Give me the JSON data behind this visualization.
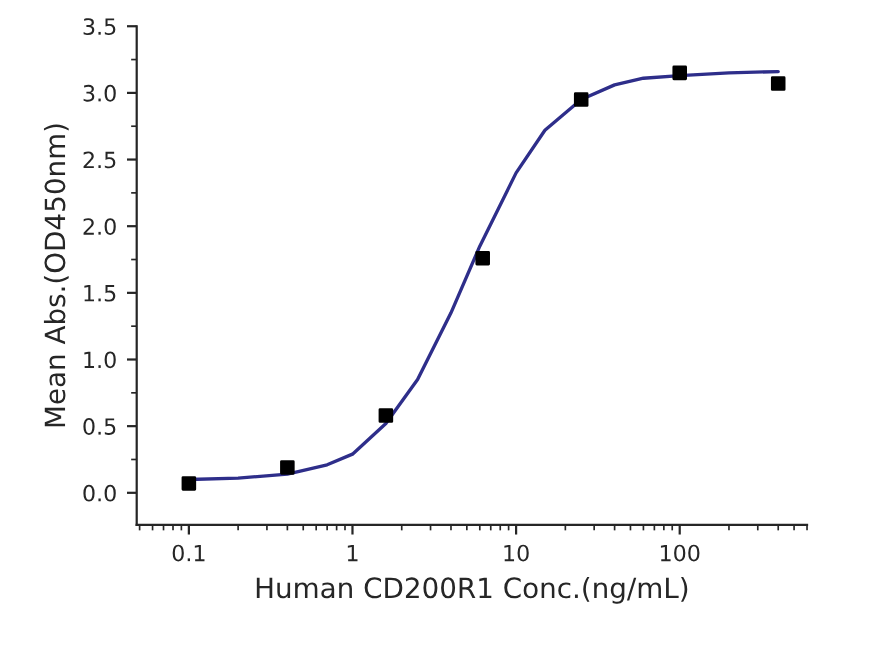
{
  "chart_data": {
    "type": "scatter",
    "xlabel": "Human CD200R1 Conc.(ng/mL)",
    "ylabel": "Mean Abs.(OD450nm)",
    "log": "x",
    "xlim": [
      0.048,
      600
    ],
    "xticks": [
      0.1,
      1,
      10,
      100
    ],
    "ylim": [
      -0.24,
      3.5
    ],
    "yticks": [
      {
        "value": 0,
        "label": "0.0"
      },
      0.5,
      {
        "value": 1,
        "label": "1.0"
      },
      1.5,
      {
        "value": 2,
        "label": "2.0"
      },
      2.5,
      {
        "value": 3,
        "label": "3.0"
      },
      3.5
    ],
    "grid": false,
    "legend": false,
    "series": [
      {
        "type": "line",
        "color": "#2e2e8a",
        "marker": "none",
        "line_style": "solid",
        "x": [
          0.1,
          0.2,
          0.4,
          0.7,
          1,
          1.6,
          2.5,
          4,
          6,
          10,
          15,
          25,
          40,
          60,
          100,
          200,
          400
        ],
        "values": [
          0.1,
          0.11,
          0.14,
          0.21,
          0.29,
          0.52,
          0.85,
          1.35,
          1.85,
          2.4,
          2.72,
          2.95,
          3.06,
          3.11,
          3.13,
          3.15,
          3.16
        ]
      },
      {
        "color": "#000000",
        "marker": "square",
        "x": [
          0.1,
          0.4,
          1.6,
          6.25,
          25,
          100,
          400
        ],
        "values": [
          0.07,
          0.19,
          0.58,
          1.76,
          2.95,
          3.15,
          3.07
        ]
      }
    ]
  }
}
